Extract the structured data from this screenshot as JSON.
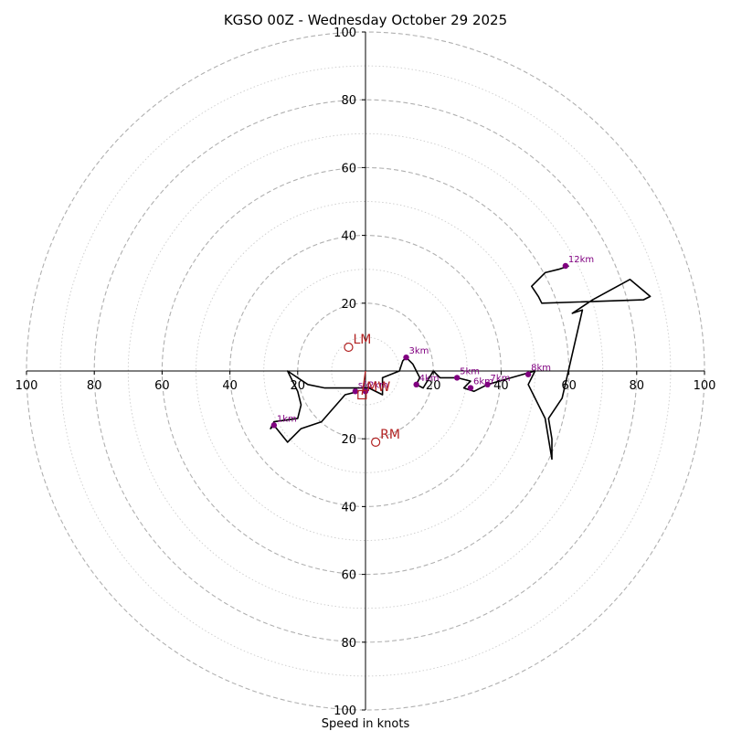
{
  "chart_data": {
    "type": "line",
    "title": "KGSO 00Z - Wednesday October 29 2025",
    "xlabel": "Speed in knots",
    "ylabel": "",
    "xlim": [
      -100,
      100
    ],
    "ylim": [
      -100,
      100
    ],
    "ring_ticks": [
      100,
      80,
      60,
      40,
      20,
      20,
      40,
      60,
      80,
      100
    ],
    "x_ticks": [
      -100,
      -80,
      -60,
      -40,
      -20,
      20,
      40,
      60,
      80,
      100
    ],
    "y_ticks": [
      100,
      80,
      60,
      40,
      20,
      -20,
      -40,
      -60,
      -80,
      -100
    ],
    "tick_labels_x": [
      "100",
      "80",
      "60",
      "40",
      "20",
      "20",
      "40",
      "60",
      "80",
      "100"
    ],
    "tick_labels_y": [
      "100",
      "80",
      "60",
      "40",
      "20",
      "20",
      "40",
      "60",
      "80",
      "100"
    ],
    "hodograph": {
      "color": "#000000",
      "points": [
        [
          -2,
          -6
        ],
        [
          -6,
          -7
        ],
        [
          -13,
          -15
        ],
        [
          -19,
          -17
        ],
        [
          -23,
          -21
        ],
        [
          -27,
          -16
        ],
        [
          -28,
          -17
        ],
        [
          -27,
          -15
        ],
        [
          -20,
          -14
        ],
        [
          -19,
          -10
        ],
        [
          -20,
          -6
        ],
        [
          -23,
          0
        ],
        [
          -17,
          -4
        ],
        [
          -12,
          -5
        ],
        [
          -5,
          -5
        ],
        [
          1,
          -5
        ],
        [
          5,
          -7
        ],
        [
          5,
          -2
        ],
        [
          10,
          0
        ],
        [
          11,
          3
        ],
        [
          12,
          4
        ],
        [
          14,
          2
        ],
        [
          16,
          -2
        ],
        [
          15,
          -4
        ],
        [
          17,
          -5
        ],
        [
          20,
          0
        ],
        [
          22,
          -2
        ],
        [
          27,
          -2
        ],
        [
          31,
          -3
        ],
        [
          29,
          -5
        ],
        [
          32,
          -6
        ],
        [
          36,
          -4
        ],
        [
          43,
          -2
        ],
        [
          50,
          0
        ],
        [
          48,
          -4
        ],
        [
          53,
          -14
        ],
        [
          55,
          -26
        ],
        [
          55,
          -20
        ],
        [
          54,
          -14
        ],
        [
          58,
          -8
        ],
        [
          64,
          18
        ],
        [
          61,
          17
        ],
        [
          67,
          21
        ],
        [
          78,
          27
        ],
        [
          84,
          22
        ],
        [
          82,
          21
        ],
        [
          52,
          20
        ],
        [
          51,
          22
        ],
        [
          49,
          25
        ],
        [
          53,
          29
        ],
        [
          57,
          30
        ],
        [
          60,
          31
        ]
      ],
      "labels": [
        {
          "x": -3,
          "y": -6,
          "text": "sfc"
        },
        {
          "x": -27,
          "y": -16,
          "text": "1km"
        },
        {
          "x": 0,
          "y": -6,
          "text": "2km"
        },
        {
          "x": 12,
          "y": 4,
          "text": "3km"
        },
        {
          "x": 15,
          "y": -4,
          "text": "4km"
        },
        {
          "x": 27,
          "y": -2,
          "text": "5km"
        },
        {
          "x": 31,
          "y": -5,
          "text": "6km"
        },
        {
          "x": 36,
          "y": -4,
          "text": "7km"
        },
        {
          "x": 48,
          "y": -1,
          "text": "8km"
        },
        {
          "x": 59,
          "y": 31,
          "text": "12km"
        }
      ]
    },
    "storm_motion": [
      {
        "id": "LM",
        "label": "LM",
        "x": -5,
        "y": 7
      },
      {
        "id": "RM",
        "label": "RM",
        "x": 3,
        "y": -21
      },
      {
        "id": "MW",
        "label": "MW",
        "x": -1,
        "y": -7
      }
    ],
    "annotation_color": "#b22222",
    "marker_color": "#800080"
  }
}
